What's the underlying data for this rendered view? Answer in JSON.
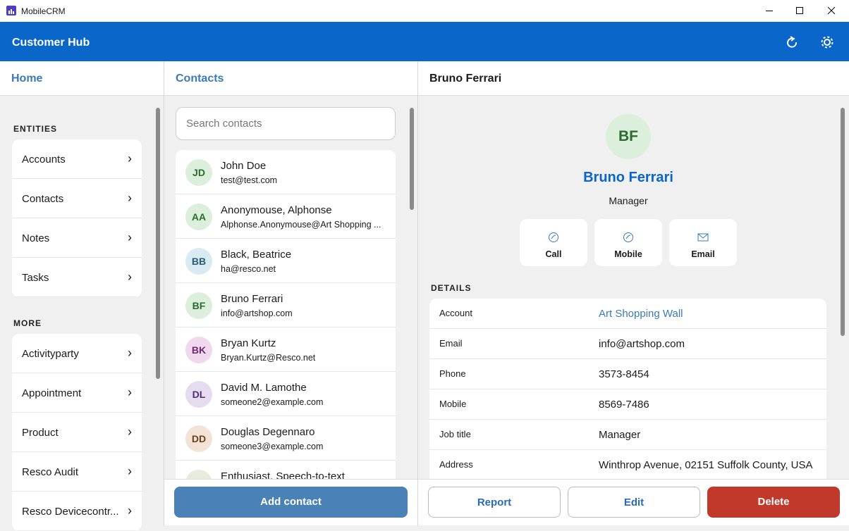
{
  "window": {
    "title": "MobileCRM"
  },
  "header": {
    "title": "Customer Hub"
  },
  "nav": {
    "title": "Home",
    "sections": [
      {
        "title": "ENTITIES",
        "items": [
          "Accounts",
          "Contacts",
          "Notes",
          "Tasks"
        ]
      },
      {
        "title": "MORE",
        "items": [
          "Activityparty",
          "Appointment",
          "Product",
          "Resco Audit",
          "Resco Devicecontr..."
        ]
      }
    ]
  },
  "contacts": {
    "title": "Contacts",
    "search_placeholder": "Search contacts",
    "items": [
      {
        "initials": "JD",
        "name": "John Doe",
        "email": "test@test.com"
      },
      {
        "initials": "AA",
        "name": "Anonymouse, Alphonse",
        "email": "Alphonse.Anonymouse@Art Shopping ..."
      },
      {
        "initials": "BB",
        "name": "Black, Beatrice",
        "email": "ha@resco.net"
      },
      {
        "initials": "BF",
        "name": "Bruno Ferrari",
        "email": "info@artshop.com"
      },
      {
        "initials": "BK",
        "name": "Bryan Kurtz",
        "email": "Bryan.Kurtz@Resco.net"
      },
      {
        "initials": "DL",
        "name": "David M. Lamothe",
        "email": "someone2@example.com"
      },
      {
        "initials": "DD",
        "name": "Douglas Degennaro",
        "email": "someone3@example.com"
      },
      {
        "name": "Enthusiast, Speech-to-text"
      }
    ],
    "add_button": "Add contact"
  },
  "detail": {
    "title": "Bruno Ferrari",
    "initials": "BF",
    "name": "Bruno Ferrari",
    "job_title": "Manager",
    "actions": [
      "Call",
      "Mobile",
      "Email"
    ],
    "details_heading": "DETAILS",
    "fields": [
      {
        "label": "Account",
        "value": "Art Shopping Wall"
      },
      {
        "label": "Email",
        "value": "info@artshop.com"
      },
      {
        "label": "Phone",
        "value": "3573-8454"
      },
      {
        "label": "Mobile",
        "value": "8569-7486"
      },
      {
        "label": "Job title",
        "value": "Manager"
      },
      {
        "label": "Address",
        "value": "Winthrop Avenue, 02151 Suffolk County, USA"
      }
    ],
    "buttons": [
      "Report",
      "Edit",
      "Delete"
    ]
  }
}
